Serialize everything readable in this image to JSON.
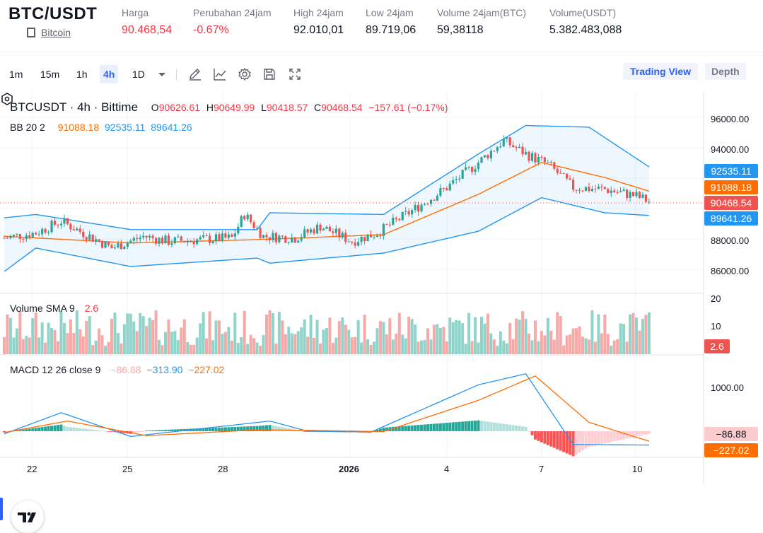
{
  "header": {
    "pair": "BTC/USDT",
    "pair_link": "Bitcoin",
    "stats": [
      {
        "label": "Harga",
        "value": "90.468,54",
        "color": "red"
      },
      {
        "label": "Perubahan 24jam",
        "value": "-0.67%",
        "color": "red"
      },
      {
        "label": "High 24jam",
        "value": "92.010,01",
        "color": "normal"
      },
      {
        "label": "Low 24jam",
        "value": "89.719,06",
        "color": "normal"
      },
      {
        "label": "Volume 24jam(BTC)",
        "value": "59,38118",
        "color": "normal"
      },
      {
        "label": "Volume(USDT)",
        "value": "5.382.483,088",
        "color": "normal"
      }
    ]
  },
  "toolbar": {
    "timeframes": [
      "1m",
      "15m",
      "1h",
      "4h",
      "1D"
    ],
    "active_timeframe": "4h",
    "icons": [
      "chevron-down-icon",
      "draw-pen-icon",
      "indicator-icon",
      "gear-icon",
      "save-icon",
      "fullscreen-icon"
    ],
    "views": {
      "trading": "Trading View",
      "depth": "Depth"
    }
  },
  "legend": {
    "symbol": "BTCUSDT · 4h · Bittime",
    "o_label": "O",
    "o": "90626.61",
    "h_label": "H",
    "h": "90649.99",
    "l_label": "L",
    "l": "90418.57",
    "c_label": "C",
    "c": "90468.54",
    "change": "−157.61 (−0.17%)",
    "bb_label": "BB 20 2",
    "bb_basis": "91088.18",
    "bb_upper": "92535.11",
    "bb_lower": "89641.26",
    "vol_label": "Volume SMA 9",
    "vol_value": "2.6",
    "macd_label": "MACD 12 26 close 9",
    "macd_hist": "−86.88",
    "macd_line": "−313.90",
    "macd_signal": "−227.02"
  },
  "price_axis": {
    "ticks": [
      "96000.00",
      "94000.00",
      "88000.00",
      "86000.00"
    ],
    "tags": {
      "upper": "92535.11",
      "basis": "91088.18",
      "last": "90468.54",
      "lower": "89641.26"
    }
  },
  "volume_axis": {
    "ticks": [
      "20",
      "10"
    ],
    "tag": "2.6"
  },
  "macd_axis": {
    "ticks": [
      "1000.00"
    ],
    "tags": {
      "hist": "−86.88",
      "signal": "−227.02"
    }
  },
  "time_axis": [
    "22",
    "25",
    "28",
    "2026",
    "4",
    "7",
    "10"
  ],
  "colors": {
    "up": "#26a69a",
    "down": "#ef5350",
    "basis": "#ff6d00",
    "band": "#2196f3",
    "fill": "#e3f2fd",
    "macd": "#2196f3",
    "signal": "#ff6d00"
  },
  "chart_data": {
    "type": "candlestick",
    "symbol": "BTCUSDT",
    "interval": "4h",
    "price_range": [
      85000,
      97000
    ],
    "close_keypoints": [
      [
        0,
        88300
      ],
      [
        10,
        88600
      ],
      [
        18,
        89300
      ],
      [
        26,
        88500
      ],
      [
        34,
        87700
      ],
      [
        44,
        88400
      ],
      [
        52,
        88100
      ],
      [
        62,
        88200
      ],
      [
        72,
        88300
      ],
      [
        76,
        89700
      ],
      [
        82,
        88400
      ],
      [
        92,
        88300
      ],
      [
        100,
        89000
      ],
      [
        110,
        88100
      ],
      [
        118,
        88600
      ],
      [
        128,
        89800
      ],
      [
        140,
        91300
      ],
      [
        150,
        92800
      ],
      [
        158,
        94100
      ],
      [
        166,
        93200
      ],
      [
        172,
        92700
      ],
      [
        180,
        91300
      ],
      [
        190,
        91200
      ],
      [
        200,
        90800
      ],
      [
        204,
        90470
      ]
    ],
    "bb_basis_keypoints": [
      [
        0,
        88400
      ],
      [
        40,
        88000
      ],
      [
        80,
        88200
      ],
      [
        120,
        88500
      ],
      [
        150,
        90900
      ],
      [
        170,
        92800
      ],
      [
        190,
        91900
      ],
      [
        204,
        91088
      ]
    ],
    "bb_upper_keypoints": [
      [
        0,
        89500
      ],
      [
        10,
        89700
      ],
      [
        20,
        89400
      ],
      [
        40,
        88800
      ],
      [
        80,
        88800
      ],
      [
        84,
        89800
      ],
      [
        120,
        89700
      ],
      [
        150,
        93300
      ],
      [
        165,
        95000
      ],
      [
        185,
        94900
      ],
      [
        204,
        92535
      ]
    ],
    "bb_lower_keypoints": [
      [
        0,
        86300
      ],
      [
        10,
        87700
      ],
      [
        40,
        86600
      ],
      [
        80,
        87100
      ],
      [
        84,
        86800
      ],
      [
        120,
        87400
      ],
      [
        150,
        88700
      ],
      [
        170,
        90700
      ],
      [
        190,
        89800
      ],
      [
        204,
        89641
      ]
    ],
    "macd_keypoints": [
      [
        0,
        -60
      ],
      [
        18,
        420
      ],
      [
        40,
        -120
      ],
      [
        60,
        40
      ],
      [
        84,
        230
      ],
      [
        96,
        0
      ],
      [
        116,
        -20
      ],
      [
        150,
        1050
      ],
      [
        165,
        1300
      ],
      [
        180,
        -300
      ],
      [
        204,
        -313.9
      ]
    ],
    "signal_keypoints": [
      [
        0,
        -30
      ],
      [
        20,
        230
      ],
      [
        45,
        -100
      ],
      [
        80,
        30
      ],
      [
        96,
        20
      ],
      [
        120,
        -10
      ],
      [
        150,
        700
      ],
      [
        168,
        1250
      ],
      [
        185,
        200
      ],
      [
        204,
        -227.02
      ]
    ],
    "volume_max": 20
  }
}
